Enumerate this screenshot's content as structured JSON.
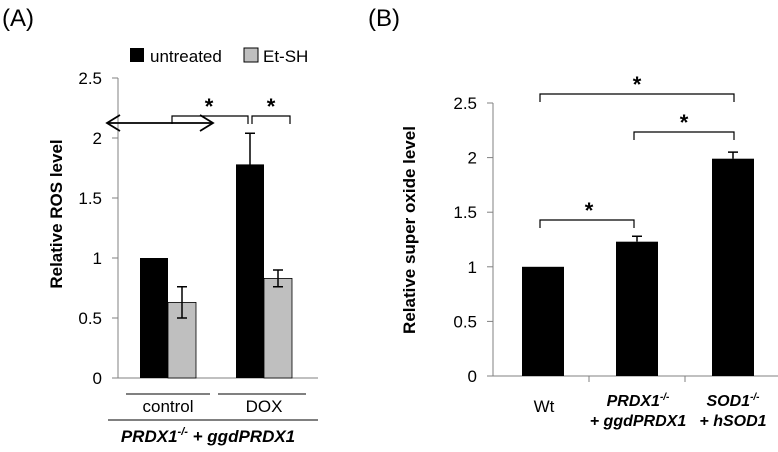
{
  "panel_a_label": "(A)",
  "panel_b_label": "(B)",
  "colors": {
    "untreated": "#000000",
    "et_sh": "#bfbfbf",
    "axis": "#808080"
  },
  "chart_data": [
    {
      "type": "bar",
      "panel": "(A)",
      "ylabel": "Relative ROS level",
      "ylim": [
        0,
        2.5
      ],
      "yticks": [
        "0",
        "0.5",
        "1",
        "1.5",
        "2",
        "2.5"
      ],
      "categories": [
        "control",
        "DOX"
      ],
      "group_label": {
        "gene": "PRDX1",
        "sup": "-/-",
        "rest": " + ggdPRDX1"
      },
      "legend": [
        "untreated",
        "Et-SH"
      ],
      "series": [
        {
          "name": "untreated",
          "values": [
            1.0,
            1.78
          ],
          "errors": [
            0,
            0.26
          ]
        },
        {
          "name": "Et-SH",
          "values": [
            0.63,
            0.83
          ],
          "errors": [
            0.13,
            0.07
          ]
        }
      ],
      "significance": [
        "*",
        "*"
      ]
    },
    {
      "type": "bar",
      "panel": "(B)",
      "ylabel": "Relative super oxide level",
      "ylim": [
        0,
        2.5
      ],
      "yticks": [
        "0",
        "0.5",
        "1",
        "1.5",
        "2",
        "2.5"
      ],
      "categories": [
        {
          "line1": "Wt",
          "line2": ""
        },
        {
          "line1_gene": "PRDX1",
          "line1_sup": "-/-",
          "line2": "+ ggdPRDX1"
        },
        {
          "line1_gene": "SOD1",
          "line1_sup": "-/-",
          "line2": "+ hSOD1"
        }
      ],
      "values": [
        1.0,
        1.23,
        1.99
      ],
      "errors": [
        0,
        0.05,
        0.06
      ],
      "significance": [
        "*",
        "*",
        "*"
      ]
    }
  ]
}
